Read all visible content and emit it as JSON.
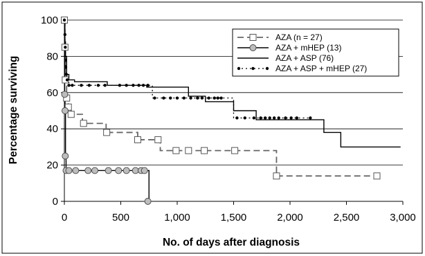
{
  "chart_data": {
    "type": "line",
    "xlabel": "No. of days after diagnosis",
    "ylabel": "Percentage surviving",
    "xlim": [
      0,
      3000
    ],
    "ylim": [
      0,
      100
    ],
    "xticks": [
      0,
      500,
      1000,
      1500,
      2000,
      2500,
      3000
    ],
    "xtick_labels": [
      "0",
      "500",
      "1,000",
      "1,500",
      "2,000",
      "2,500",
      "3,000"
    ],
    "yticks": [
      0,
      20,
      40,
      60,
      80,
      100
    ],
    "ytick_labels": [
      "0",
      "20",
      "40",
      "60",
      "80",
      "100"
    ],
    "grid": "horizontal",
    "legend_position": "top-right",
    "series": [
      {
        "name": "AZA (n = 27)",
        "color": "#666666",
        "line": "dashed",
        "marker": "square-open",
        "steps": [
          [
            0,
            100
          ],
          [
            5,
            85
          ],
          [
            8,
            67
          ],
          [
            20,
            57
          ],
          [
            35,
            52
          ],
          [
            60,
            48
          ],
          [
            160,
            43
          ],
          [
            370,
            38
          ],
          [
            650,
            34
          ],
          [
            850,
            28
          ],
          [
            1880,
            14
          ],
          [
            2780,
            14
          ]
        ],
        "markers": [
          [
            0,
            100
          ],
          [
            5,
            85
          ],
          [
            8,
            67
          ],
          [
            20,
            57
          ],
          [
            35,
            52
          ],
          [
            60,
            48
          ],
          [
            170,
            43
          ],
          [
            375,
            38
          ],
          [
            650,
            34
          ],
          [
            830,
            34
          ],
          [
            990,
            28
          ],
          [
            1100,
            28
          ],
          [
            1240,
            28
          ],
          [
            1510,
            28
          ],
          [
            1880,
            14
          ],
          [
            2770,
            14
          ]
        ]
      },
      {
        "name": "AZA + mHEP (13)",
        "color": "#000000",
        "line": "solid",
        "marker": "circle-grey",
        "steps": [
          [
            0,
            100
          ],
          [
            3,
            59
          ],
          [
            6,
            50
          ],
          [
            10,
            25
          ],
          [
            15,
            17
          ],
          [
            750,
            0
          ]
        ],
        "markers": [
          [
            3,
            59
          ],
          [
            6,
            50
          ],
          [
            8,
            25
          ],
          [
            15,
            17
          ],
          [
            40,
            17
          ],
          [
            100,
            17
          ],
          [
            210,
            17
          ],
          [
            270,
            17
          ],
          [
            390,
            17
          ],
          [
            480,
            17
          ],
          [
            550,
            17
          ],
          [
            630,
            17
          ],
          [
            680,
            17
          ],
          [
            710,
            17
          ],
          [
            740,
            0
          ]
        ],
        "end_marker": [
          750,
          0
        ]
      },
      {
        "name": "AZA + ASP (76)",
        "color": "#000000",
        "line": "solid",
        "marker": "none",
        "steps": [
          [
            0,
            100
          ],
          [
            5,
            88
          ],
          [
            10,
            80
          ],
          [
            20,
            70
          ],
          [
            40,
            67
          ],
          [
            90,
            66
          ],
          [
            380,
            64
          ],
          [
            730,
            63
          ],
          [
            1100,
            58
          ],
          [
            1250,
            55
          ],
          [
            1500,
            50
          ],
          [
            1700,
            45
          ],
          [
            2300,
            38
          ],
          [
            2450,
            30
          ],
          [
            2980,
            30
          ]
        ]
      },
      {
        "name": "AZA + ASP + mHEP (27)",
        "color": "#000000",
        "line": "dotted",
        "marker": "dot",
        "steps": [
          [
            0,
            100
          ],
          [
            5,
            85
          ],
          [
            10,
            74
          ],
          [
            20,
            67
          ],
          [
            40,
            64
          ],
          [
            780,
            57
          ],
          [
            1500,
            46
          ],
          [
            2190,
            46
          ]
        ],
        "markers": [
          [
            0,
            100
          ],
          [
            5,
            92
          ],
          [
            8,
            85
          ],
          [
            10,
            78
          ],
          [
            12,
            74
          ],
          [
            18,
            70
          ],
          [
            25,
            67
          ],
          [
            40,
            64
          ],
          [
            70,
            64
          ],
          [
            150,
            64
          ],
          [
            220,
            64
          ],
          [
            300,
            64
          ],
          [
            360,
            64
          ],
          [
            490,
            64
          ],
          [
            550,
            64
          ],
          [
            610,
            64
          ],
          [
            660,
            64
          ],
          [
            700,
            64
          ],
          [
            740,
            64
          ],
          [
            800,
            57
          ],
          [
            880,
            57
          ],
          [
            940,
            57
          ],
          [
            1000,
            57
          ],
          [
            1060,
            57
          ],
          [
            1120,
            57
          ],
          [
            1180,
            57
          ],
          [
            1220,
            57
          ],
          [
            1280,
            57
          ],
          [
            1330,
            57
          ],
          [
            1360,
            57
          ],
          [
            1390,
            57
          ],
          [
            1530,
            46
          ],
          [
            1600,
            46
          ],
          [
            1680,
            46
          ],
          [
            1740,
            46
          ],
          [
            1780,
            46
          ],
          [
            1820,
            46
          ],
          [
            1860,
            46
          ],
          [
            1900,
            46
          ],
          [
            1960,
            46
          ],
          [
            2010,
            46
          ],
          [
            2060,
            46
          ],
          [
            2180,
            46
          ]
        ]
      }
    ]
  }
}
